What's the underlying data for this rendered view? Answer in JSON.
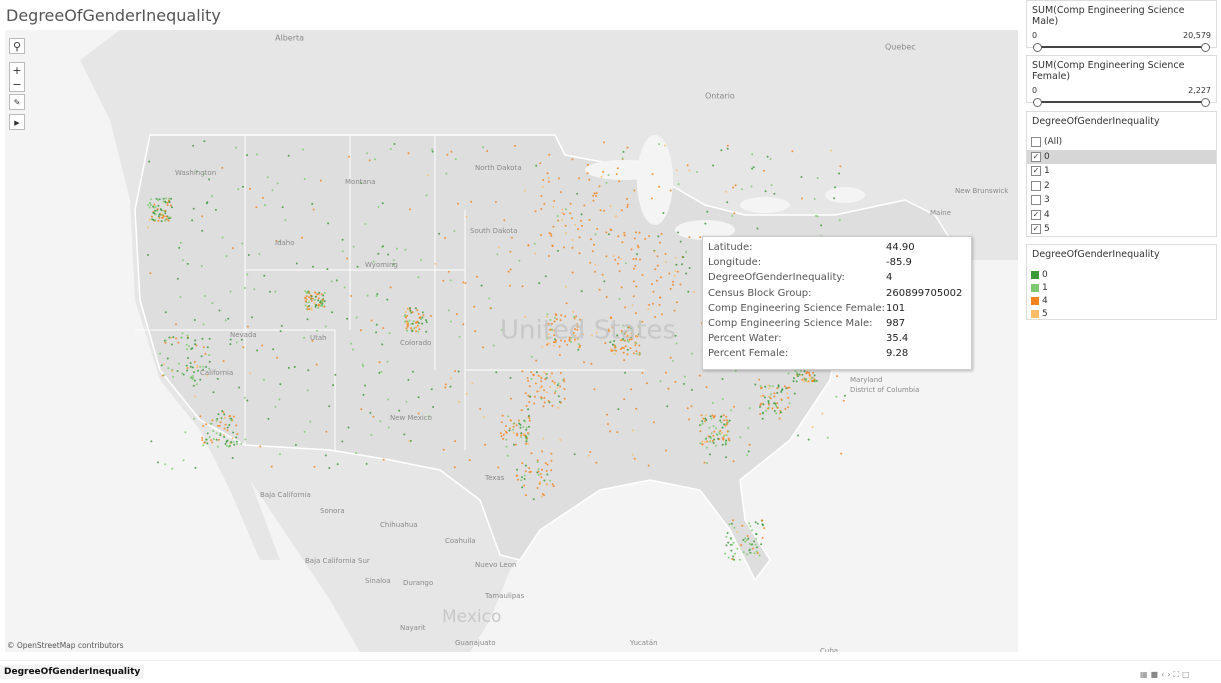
{
  "header": {
    "title": "DegreeOfGenderInequality"
  },
  "map": {
    "labels": [
      "Alberta",
      "Quebec",
      "Ontario",
      "Washington",
      "Montana",
      "North Dakota",
      "South Dakota",
      "Idaho",
      "Wyoming",
      "Nevada",
      "Utah",
      "Colorado",
      "California",
      "New Mexico",
      "Texas",
      "United States",
      "Maryland",
      "District of Columbia",
      "New Brunswick",
      "Maine",
      "Baja California",
      "Sonora",
      "Chihuahua",
      "Coahuila",
      "Nuevo Leon",
      "Tamaulipas",
      "Baja California Sur",
      "Sinaloa",
      "Durango",
      "Mexico",
      "Nayarit",
      "Guanajuato",
      "Yucatán",
      "Cuba"
    ],
    "attribution": "© OpenStreetMap contributors"
  },
  "tooltip": {
    "rows": [
      [
        "Latitude:",
        "44.90"
      ],
      [
        "Longitude:",
        "-85.9"
      ],
      [
        "DegreeOfGenderInequality:",
        "4"
      ],
      [
        "Census Block Group:",
        "260899705002"
      ],
      [
        "Comp Engineering Science Female:",
        "101"
      ],
      [
        "Comp Engineering Science Male:",
        "987"
      ],
      [
        "Percent Water:",
        "35.4"
      ],
      [
        "Percent Female:",
        "9.28"
      ]
    ]
  },
  "filters": [
    {
      "title": "SUM(Comp Engineering Science Male)",
      "min": "0",
      "max": "20,579"
    },
    {
      "title": "SUM(Comp Engineering Science Female)",
      "min": "0",
      "max": "2,227"
    }
  ],
  "checklist": {
    "title": "DegreeOfGenderInequality",
    "items": [
      {
        "label": "(All)",
        "checked": false,
        "selected": false
      },
      {
        "label": "0",
        "checked": true,
        "selected": true
      },
      {
        "label": "1",
        "checked": true,
        "selected": false
      },
      {
        "label": "2",
        "checked": false,
        "selected": false
      },
      {
        "label": "3",
        "checked": false,
        "selected": false
      },
      {
        "label": "4",
        "checked": true,
        "selected": false
      },
      {
        "label": "5",
        "checked": true,
        "selected": false
      }
    ]
  },
  "legend": {
    "title": "DegreeOfGenderInequality",
    "items": [
      {
        "label": "0",
        "color": "#3b9b3b"
      },
      {
        "label": "1",
        "color": "#7dcb6e"
      },
      {
        "label": "4",
        "color": "#f28522"
      },
      {
        "label": "5",
        "color": "#ffbd6b"
      }
    ]
  },
  "tabs": [
    "DegreeOfGenderInequality"
  ]
}
